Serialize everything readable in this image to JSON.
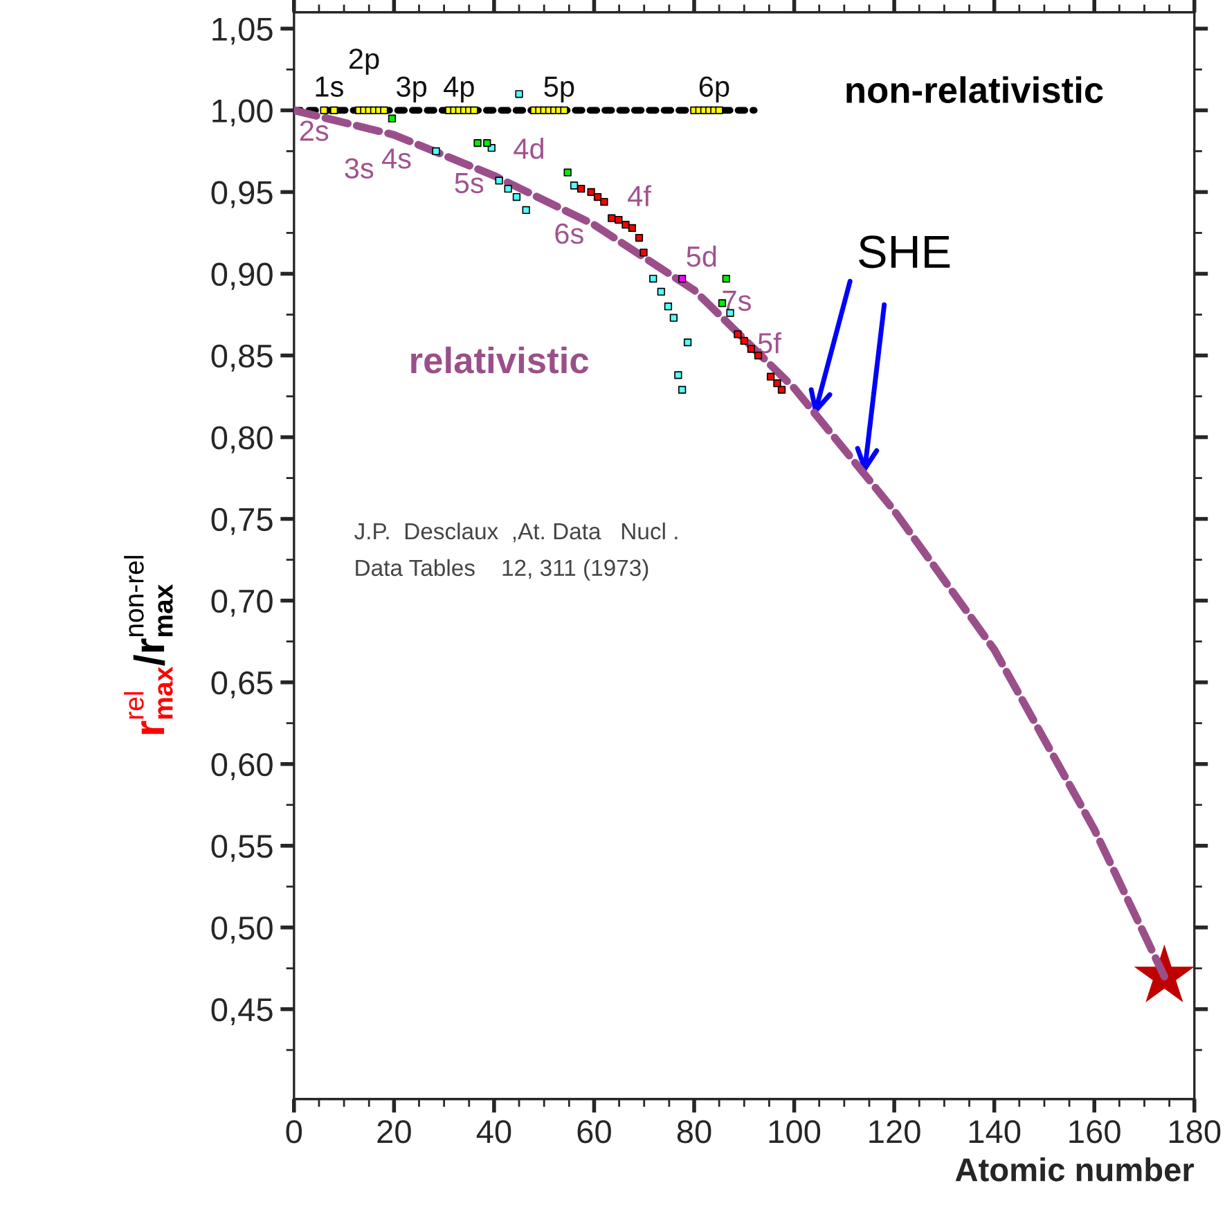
{
  "chart_data": {
    "type": "scatter",
    "xlabel": "Atomic number",
    "ylabel": "r$_{max}$$^{rel}$/r$_{max}$$^{non-rel}$",
    "xlim": [
      0,
      180
    ],
    "xticks": [
      0,
      20,
      40,
      60,
      80,
      100,
      120,
      140,
      160,
      180
    ],
    "ylim": [
      0.395,
      1.06
    ],
    "yticks": [
      {
        "value": 0.45,
        "label": "0,45"
      },
      {
        "value": 0.5,
        "label": "0,50"
      },
      {
        "value": 0.55,
        "label": "0,55"
      },
      {
        "value": 0.6,
        "label": "0,60"
      },
      {
        "value": 0.65,
        "label": "0,65"
      },
      {
        "value": 0.7,
        "label": "0,70"
      },
      {
        "value": 0.75,
        "label": "0,75"
      },
      {
        "value": 0.8,
        "label": "0,80"
      },
      {
        "value": 0.85,
        "label": "0,85"
      },
      {
        "value": 0.9,
        "label": "0,90"
      },
      {
        "value": 0.95,
        "label": "0,95"
      },
      {
        "value": 1.0,
        "label": "1,00"
      },
      {
        "value": 1.05,
        "label": "1,05"
      }
    ],
    "grid": false,
    "legend": false,
    "series": [
      {
        "name": "non-relativistic",
        "type": "line",
        "line_style": "dotted",
        "marker": "none",
        "color": "#000000",
        "x": [
          0,
          92
        ],
        "values": [
          1.0,
          1.0
        ]
      },
      {
        "name": "relativistic",
        "type": "line",
        "line_style": "dashed",
        "marker": "none",
        "color": "#9b4f8a",
        "x": [
          0,
          20,
          40,
          60,
          80,
          100,
          120,
          140,
          160,
          174
        ],
        "values": [
          1.0,
          0.985,
          0.96,
          0.93,
          0.89,
          0.83,
          0.755,
          0.67,
          0.56,
          0.47
        ]
      },
      {
        "marker": "square",
        "color": "#ffff00",
        "x": [
          6,
          8,
          13,
          14,
          15,
          16,
          17,
          18,
          31,
          32,
          33,
          34,
          35,
          36,
          48,
          49,
          50,
          51,
          52,
          53,
          54,
          80,
          81,
          82,
          83,
          84,
          85
        ],
        "values": [
          1.0,
          1.0,
          1.0,
          1.0,
          1.0,
          1.0,
          1.0,
          1.0,
          1.0,
          1.0,
          1.0,
          1.0,
          1.0,
          1.0,
          1.0,
          1.0,
          1.0,
          1.0,
          1.0,
          1.0,
          1.0,
          1.0,
          1.0,
          1.0,
          1.0,
          1.0,
          1.0
        ]
      },
      {
        "marker": "square",
        "color": "#55ffff",
        "x": [
          28.4,
          39.5,
          41,
          42.8,
          44.5,
          46.4,
          45,
          56,
          71.8,
          73.4,
          74.8,
          75.9,
          78.7,
          76.8,
          77.6,
          87.2
        ],
        "values": [
          0.975,
          0.977,
          0.957,
          0.952,
          0.947,
          0.939,
          1.01,
          0.954,
          0.897,
          0.889,
          0.88,
          0.873,
          0.858,
          0.838,
          0.829,
          0.876
        ]
      },
      {
        "marker": "square",
        "color": "#00ee00",
        "x": [
          19.6,
          36.7,
          38.6,
          54.7,
          86.4,
          85.6
        ],
        "values": [
          0.995,
          0.98,
          0.98,
          0.962,
          0.897,
          0.882
        ]
      },
      {
        "marker": "square",
        "color": "#ff0000",
        "x": [
          57.4,
          59.4,
          60.7,
          62,
          63.5,
          64.9,
          66.3,
          67.6,
          69,
          69.9,
          88.7,
          90,
          91.4,
          92.8,
          95.3,
          96.6,
          97.5
        ],
        "values": [
          0.952,
          0.95,
          0.947,
          0.944,
          0.934,
          0.933,
          0.93,
          0.928,
          0.922,
          0.913,
          0.863,
          0.859,
          0.854,
          0.85,
          0.837,
          0.833,
          0.829
        ]
      },
      {
        "marker": "square",
        "color": "#ff00ff",
        "x": [
          77.6
        ],
        "values": [
          0.897
        ]
      },
      {
        "marker": "star",
        "color": "#c00000",
        "x": [
          174
        ],
        "values": [
          0.47
        ]
      }
    ],
    "annotations": [
      "1s",
      "2p",
      "3p",
      "4p",
      "5p",
      "6p",
      "2s",
      "3s",
      "4s",
      "5s",
      "4d",
      "6s",
      "4f",
      "5d",
      "7s",
      "5f",
      {
        "text": "SHE",
        "x": 104,
        "y": 0.813
      },
      "J.P.  Desclaux  ,At. Data   Nucl .\nData Tables    12, 311 (1973)"
    ]
  }
}
